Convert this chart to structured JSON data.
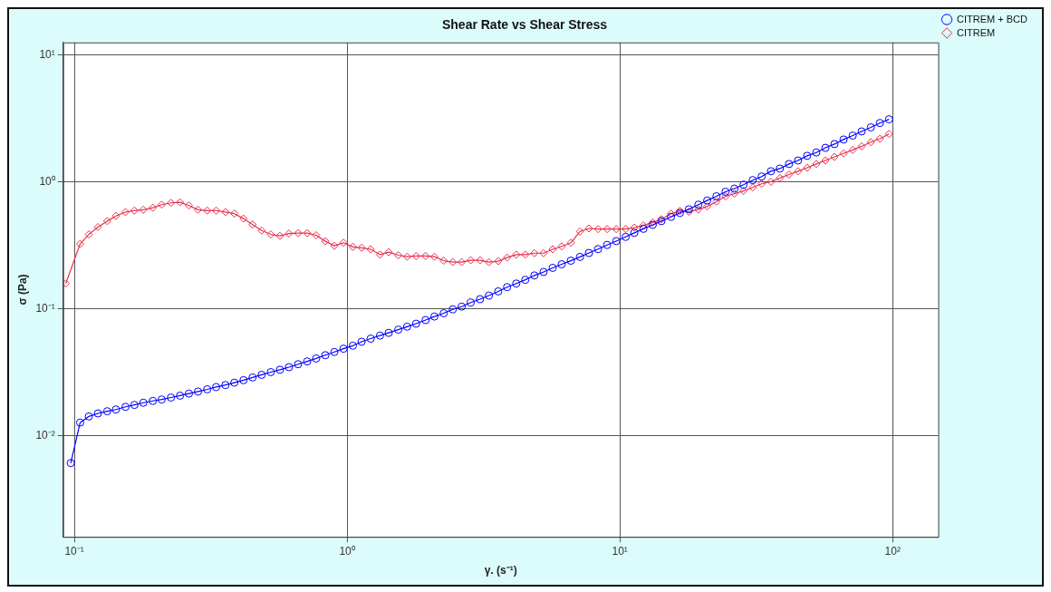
{
  "chart_data": {
    "type": "line",
    "title": "Shear Rate vs Shear Stress",
    "xlabel": "γ. (s⁻¹)",
    "ylabel": "σ (Pa)",
    "log": "xy",
    "grid": true,
    "legend": "top right",
    "line_style": "solid",
    "xlim": [
      0.091,
      147
    ],
    "ylim": [
      0.0016,
      12.5
    ],
    "xticks": [
      {
        "value": 0.1,
        "label": "10⁻¹"
      },
      {
        "value": 1,
        "label": "10⁰"
      },
      {
        "value": 10,
        "label": "10¹"
      },
      {
        "value": 100,
        "label": "10²"
      }
    ],
    "yticks": [
      {
        "value": 0.01,
        "label": "10⁻²"
      },
      {
        "value": 0.1,
        "label": "10⁻¹"
      },
      {
        "value": 1,
        "label": "10⁰"
      },
      {
        "value": 10,
        "label": "10¹"
      }
    ],
    "x": [
      0.097,
      0.105,
      0.113,
      0.122,
      0.132,
      0.142,
      0.154,
      0.166,
      0.179,
      0.194,
      0.209,
      0.226,
      0.244,
      0.263,
      0.284,
      0.307,
      0.331,
      0.358,
      0.386,
      0.417,
      0.45,
      0.486,
      0.525,
      0.567,
      0.612,
      0.661,
      0.714,
      0.77,
      0.832,
      0.898,
      0.97,
      1.05,
      1.13,
      1.22,
      1.32,
      1.42,
      1.54,
      1.66,
      1.79,
      1.94,
      2.09,
      2.26,
      2.44,
      2.63,
      2.84,
      3.07,
      3.31,
      3.58,
      3.86,
      4.17,
      4.5,
      4.86,
      5.25,
      5.67,
      6.12,
      6.61,
      7.14,
      7.7,
      8.32,
      8.98,
      9.7,
      10.5,
      11.3,
      12.2,
      13.2,
      14.2,
      15.4,
      16.6,
      17.9,
      19.4,
      20.9,
      22.6,
      24.4,
      26.3,
      28.4,
      30.7,
      33.1,
      35.8,
      38.6,
      41.7,
      45.0,
      48.6,
      52.5,
      56.7,
      61.2,
      66.1,
      71.4,
      77.0,
      83.2,
      89.8,
      97.0
    ],
    "series": [
      {
        "name": "CITREM + BCD",
        "color": "#0000ff",
        "marker": "circle",
        "values": [
          0.0061,
          0.0127,
          0.0142,
          0.015,
          0.0156,
          0.0161,
          0.0169,
          0.0175,
          0.0182,
          0.0188,
          0.0193,
          0.02,
          0.0207,
          0.0215,
          0.0223,
          0.0232,
          0.0242,
          0.0251,
          0.0262,
          0.0274,
          0.0288,
          0.0302,
          0.0317,
          0.0331,
          0.0347,
          0.0366,
          0.0385,
          0.0406,
          0.0431,
          0.0457,
          0.0485,
          0.0512,
          0.055,
          0.0582,
          0.0615,
          0.0646,
          0.0685,
          0.0723,
          0.0763,
          0.0815,
          0.0869,
          0.0922,
          0.0989,
          0.104,
          0.112,
          0.119,
          0.127,
          0.137,
          0.148,
          0.158,
          0.169,
          0.183,
          0.195,
          0.21,
          0.224,
          0.239,
          0.256,
          0.275,
          0.295,
          0.318,
          0.341,
          0.368,
          0.396,
          0.426,
          0.458,
          0.49,
          0.529,
          0.568,
          0.607,
          0.66,
          0.712,
          0.768,
          0.834,
          0.883,
          0.948,
          1.03,
          1.1,
          1.21,
          1.27,
          1.38,
          1.47,
          1.6,
          1.7,
          1.85,
          1.98,
          2.15,
          2.31,
          2.49,
          2.68,
          2.9,
          3.1
        ]
      },
      {
        "name": "CITREM",
        "color": "#e8304a",
        "marker": "diamond",
        "x": [
          0.093,
          0.105,
          0.113,
          0.122,
          0.132,
          0.142,
          0.154,
          0.166,
          0.179,
          0.194,
          0.209,
          0.226,
          0.244,
          0.263,
          0.284,
          0.307,
          0.331,
          0.358,
          0.386,
          0.417,
          0.45,
          0.486,
          0.525,
          0.567,
          0.612,
          0.661,
          0.714,
          0.77,
          0.832,
          0.898,
          0.97,
          1.05,
          1.13,
          1.22,
          1.32,
          1.42,
          1.54,
          1.66,
          1.79,
          1.94,
          2.09,
          2.26,
          2.44,
          2.63,
          2.84,
          3.07,
          3.31,
          3.58,
          3.86,
          4.17,
          4.5,
          4.86,
          5.25,
          5.67,
          6.12,
          6.61,
          7.14,
          7.7,
          8.32,
          8.98,
          9.7,
          10.5,
          11.3,
          12.2,
          13.2,
          14.2,
          15.4,
          16.6,
          17.9,
          19.4,
          20.9,
          22.6,
          24.4,
          26.3,
          28.4,
          30.7,
          33.1,
          35.8,
          38.6,
          41.7,
          45.0,
          48.6,
          52.5,
          56.7,
          61.2,
          66.1,
          71.4,
          77.0,
          83.2,
          89.8,
          97.0
        ],
        "values": [
          0.158,
          0.324,
          0.385,
          0.44,
          0.49,
          0.538,
          0.577,
          0.593,
          0.602,
          0.625,
          0.66,
          0.682,
          0.689,
          0.65,
          0.602,
          0.593,
          0.593,
          0.577,
          0.561,
          0.513,
          0.46,
          0.413,
          0.385,
          0.375,
          0.391,
          0.394,
          0.394,
          0.379,
          0.34,
          0.313,
          0.331,
          0.307,
          0.302,
          0.294,
          0.267,
          0.279,
          0.264,
          0.257,
          0.26,
          0.26,
          0.257,
          0.239,
          0.233,
          0.233,
          0.241,
          0.241,
          0.233,
          0.237,
          0.253,
          0.267,
          0.267,
          0.274,
          0.274,
          0.294,
          0.31,
          0.331,
          0.406,
          0.429,
          0.424,
          0.424,
          0.424,
          0.424,
          0.436,
          0.453,
          0.478,
          0.507,
          0.561,
          0.59,
          0.58,
          0.604,
          0.64,
          0.697,
          0.768,
          0.806,
          0.847,
          0.903,
          0.963,
          1.0,
          1.07,
          1.14,
          1.21,
          1.29,
          1.38,
          1.47,
          1.57,
          1.67,
          1.78,
          1.9,
          2.05,
          2.18,
          2.38
        ]
      }
    ]
  }
}
